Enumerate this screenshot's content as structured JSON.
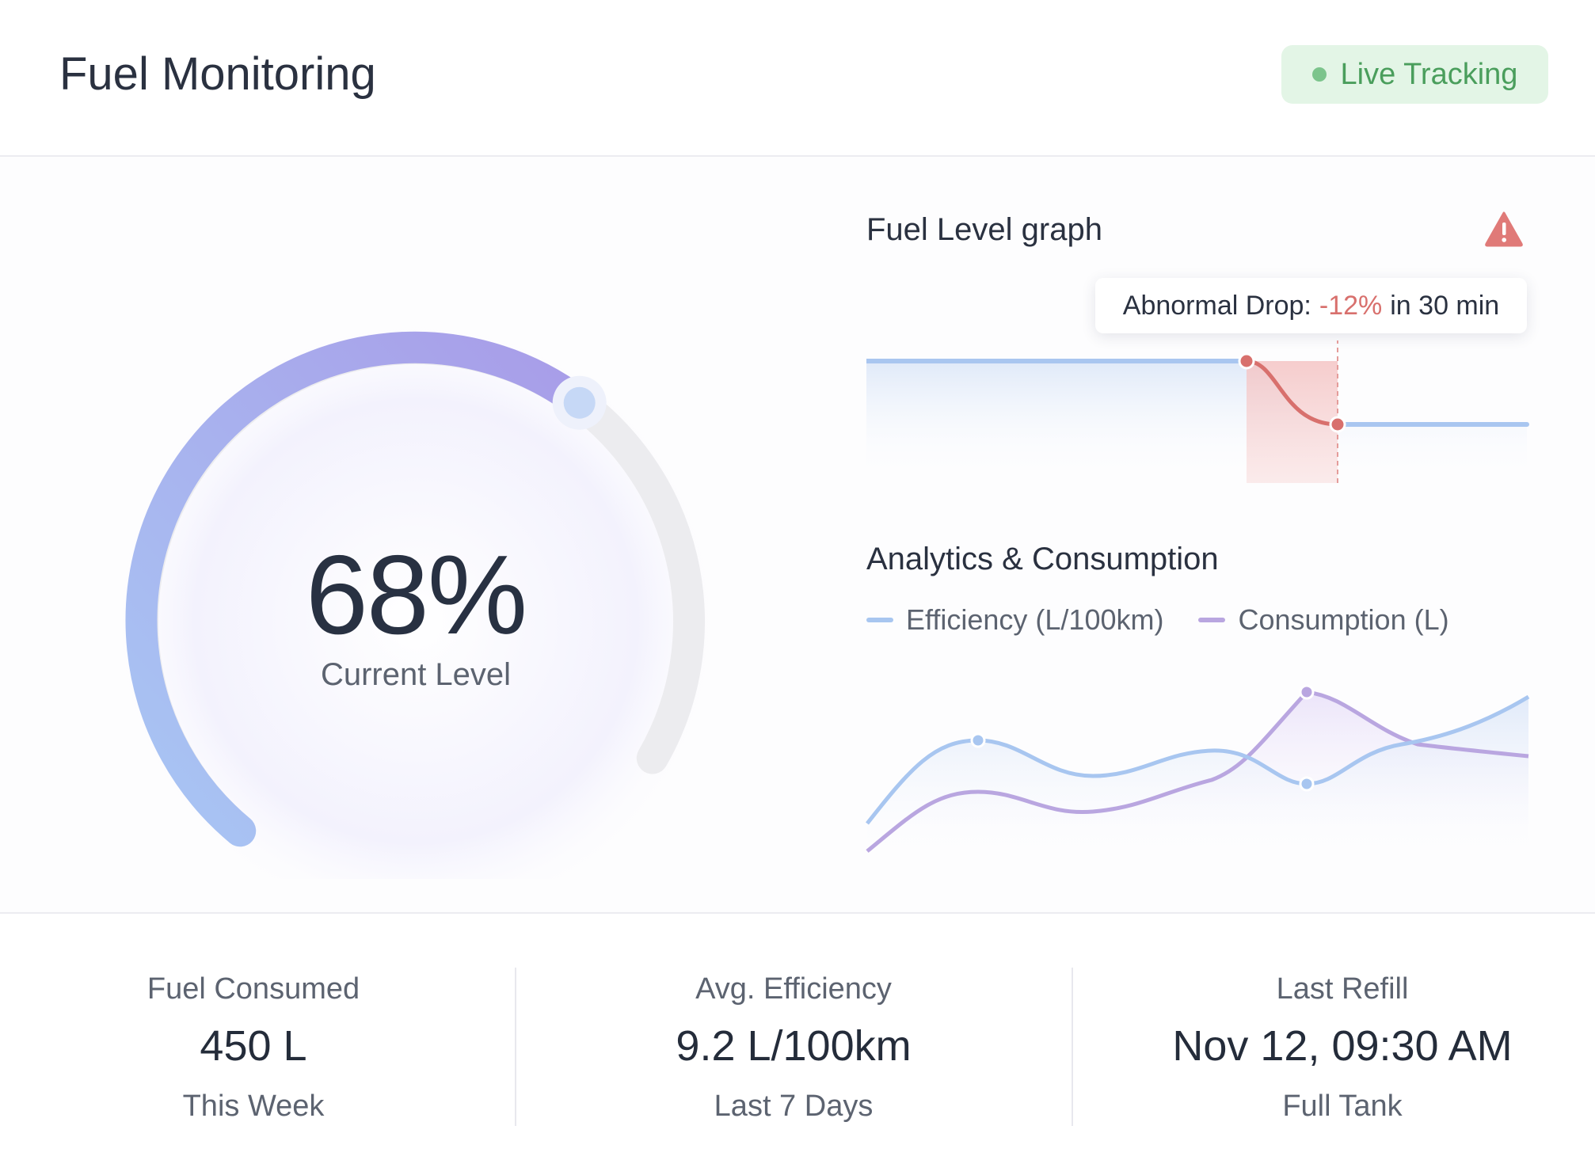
{
  "header": {
    "title": "Fuel Monitoring",
    "live_badge": "Live Tracking",
    "live_color": "#7cc48c"
  },
  "gauge": {
    "value": "68%",
    "label": "Current Level",
    "level_fraction": 0.68,
    "accent_start": "#a8c6f4",
    "accent_end": "#a89ce8"
  },
  "fuel_level": {
    "title": "Fuel Level graph",
    "warning_icon": "warning-triangle-icon",
    "tooltip": {
      "prefix": "Abnormal Drop:",
      "change": "-12%",
      "suffix": "in 30 min"
    },
    "alert_color": "#d8706d"
  },
  "analytics": {
    "title": "Analytics & Consumption",
    "legend": [
      {
        "label": "Efficiency (L/100km)",
        "color": "#a8c6f0"
      },
      {
        "label": "Consumption (L)",
        "color": "#b9a6e0"
      }
    ]
  },
  "stats": [
    {
      "label": "Fuel Consumed",
      "value": "450 L",
      "sub": "This Week"
    },
    {
      "label": "Avg. Efficiency",
      "value": "9.2 L/100km",
      "sub": "Last 7 Days"
    },
    {
      "label": "Last Refill",
      "value": "Nov 12, 09:30 AM",
      "sub": "Full Tank"
    }
  ]
}
